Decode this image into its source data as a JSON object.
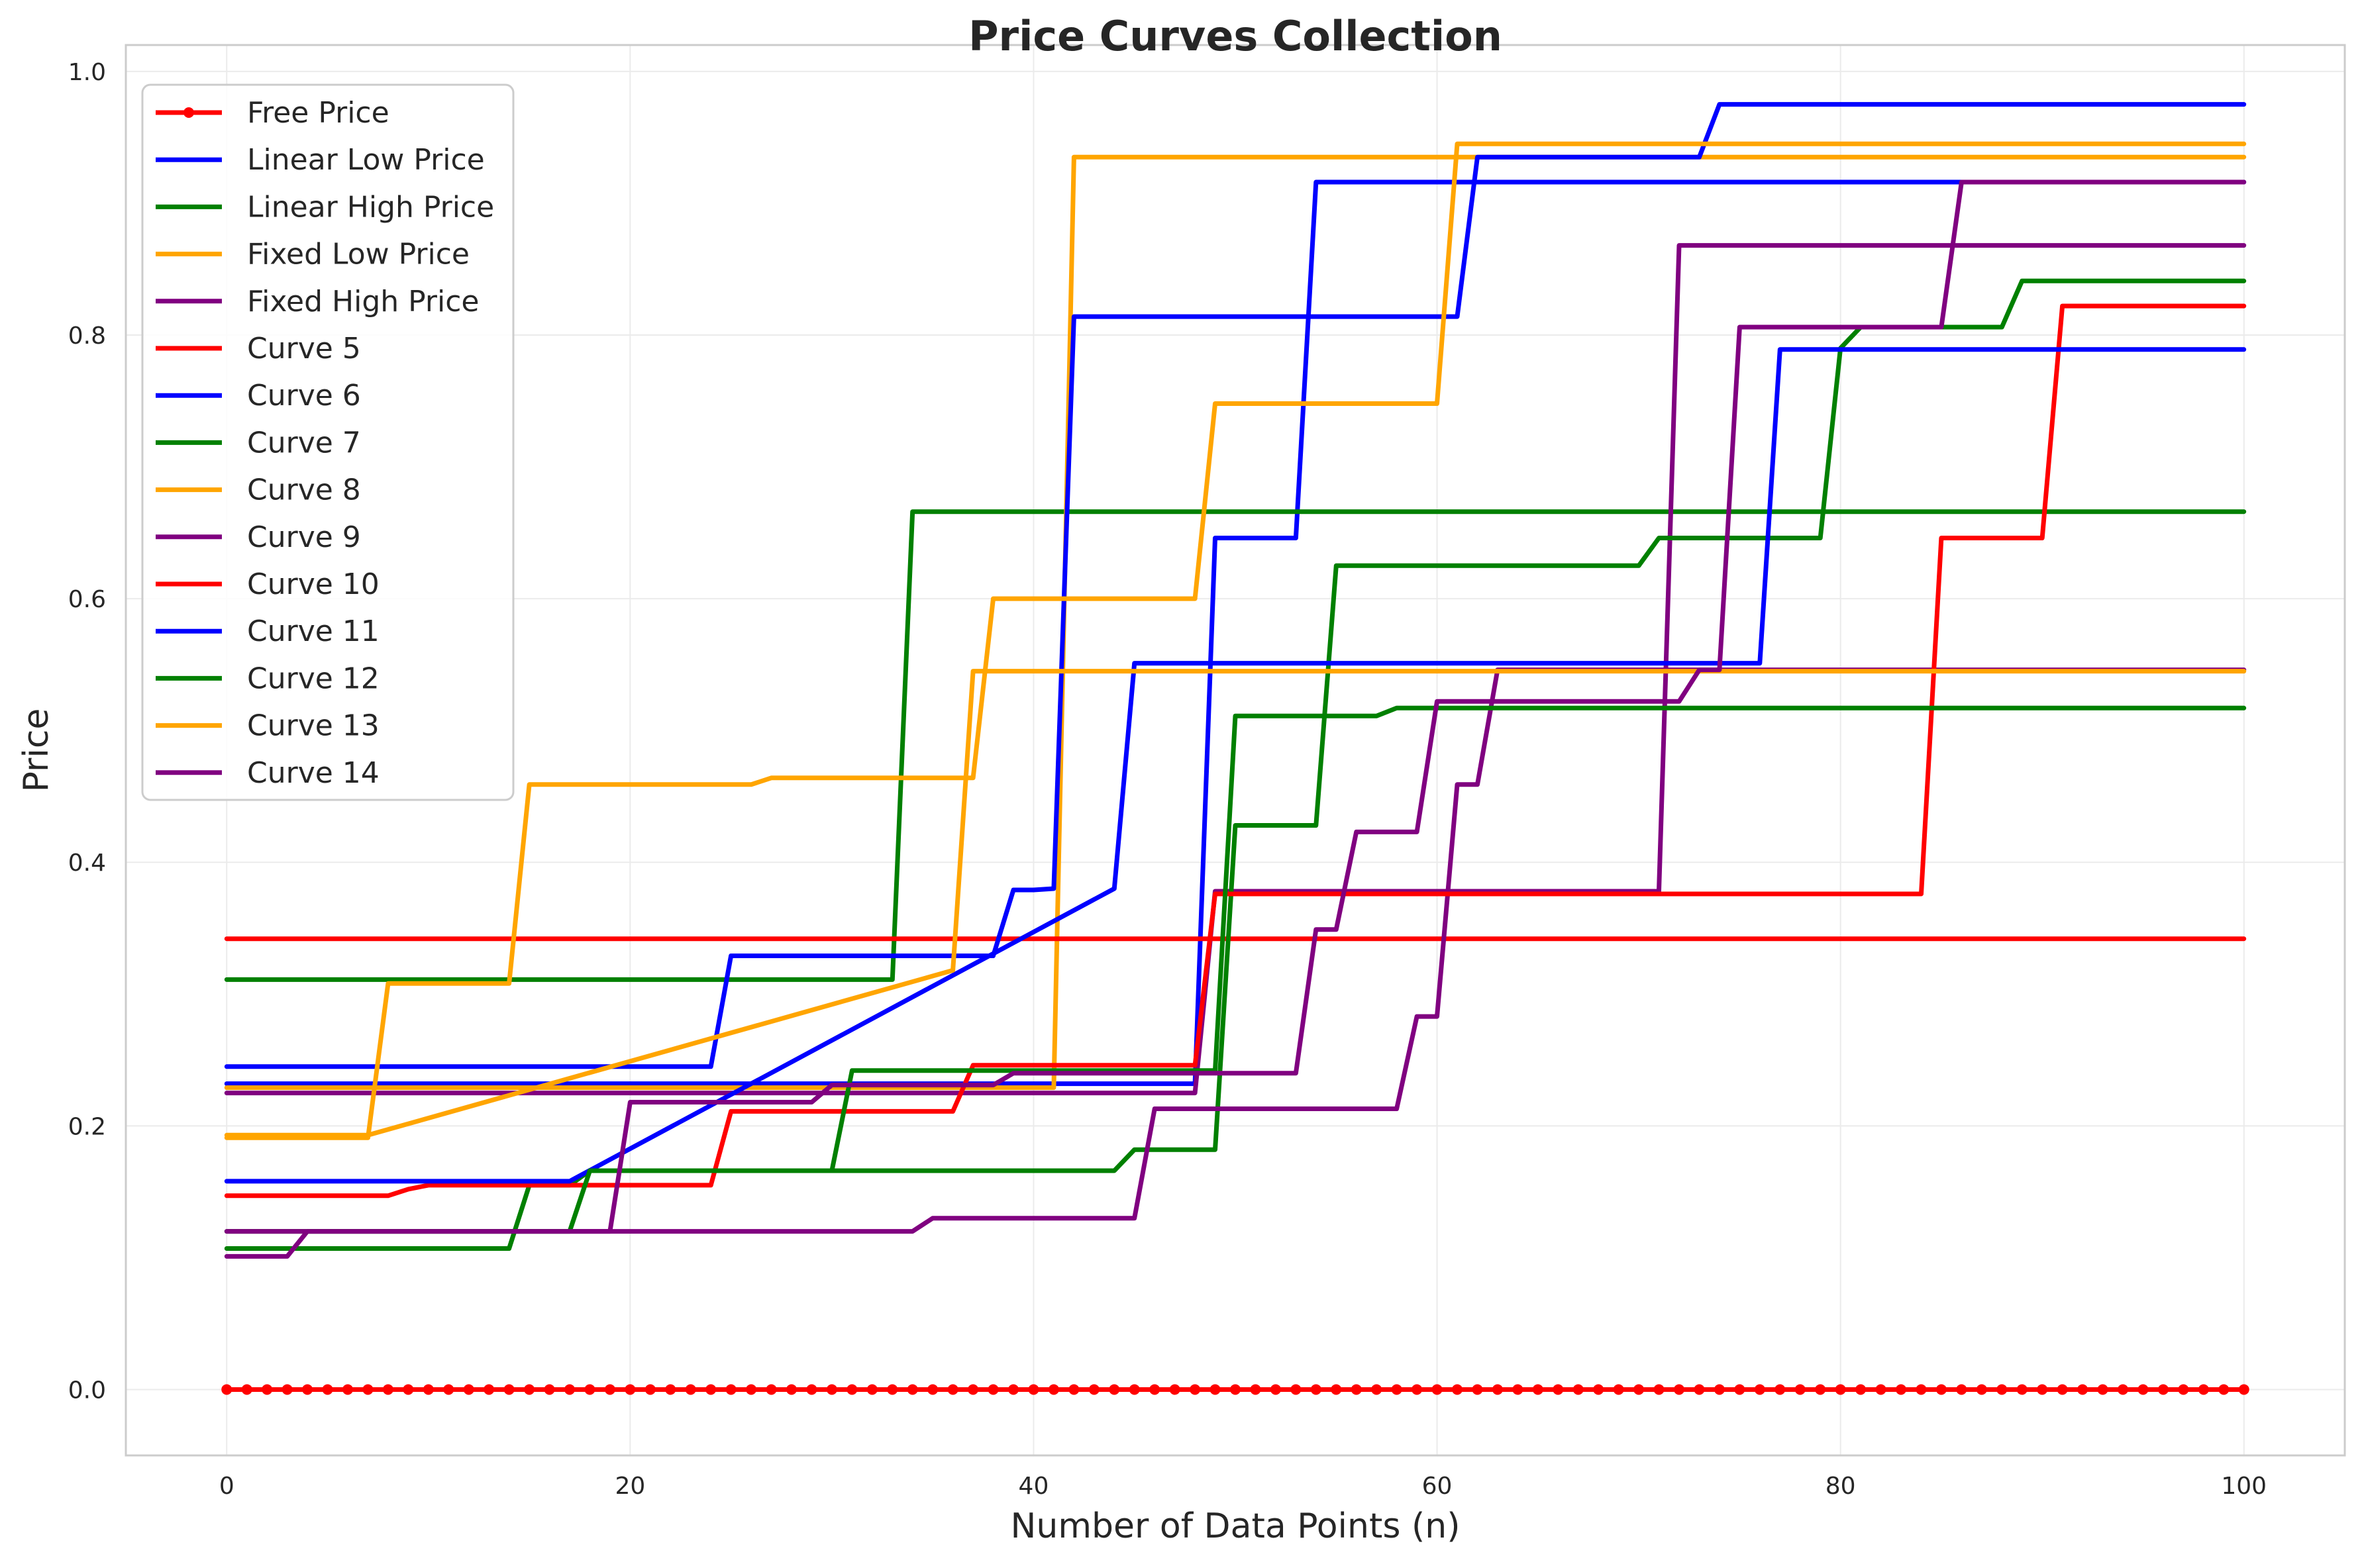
{
  "chart_data": {
    "type": "line",
    "title": "Price Curves Collection",
    "xlabel": "Number of Data Points (n)",
    "ylabel": "Price",
    "xlim": [
      -5,
      105
    ],
    "ylim": [
      -0.05,
      1.02
    ],
    "xticks": [
      0,
      20,
      40,
      60,
      80,
      100
    ],
    "yticks": [
      0.0,
      0.2,
      0.4,
      0.6,
      0.8,
      1.0
    ],
    "xtick_labels": [
      "0",
      "20",
      "40",
      "60",
      "80",
      "100"
    ],
    "ytick_labels": [
      "0.0",
      "0.2",
      "0.4",
      "0.6",
      "0.8",
      "1.0"
    ],
    "grid": true,
    "legend_position": "top-left",
    "series": [
      {
        "name": "Free Price",
        "color": "#ff0000",
        "markers": true,
        "x": [
          0,
          100
        ],
        "y": [
          0.0,
          0.0
        ]
      },
      {
        "name": "Linear Low Price",
        "color": "#0000ff",
        "x": [
          0,
          48,
          49,
          53,
          54,
          100
        ],
        "y": [
          0.232,
          0.232,
          0.646,
          0.646,
          0.916,
          0.916
        ]
      },
      {
        "name": "Linear High Price",
        "color": "#008000",
        "x": [
          0,
          33,
          34,
          100
        ],
        "y": [
          0.311,
          0.311,
          0.666,
          0.666
        ]
      },
      {
        "name": "Fixed Low Price",
        "color": "#ffa500",
        "x": [
          0,
          41,
          42,
          100
        ],
        "y": [
          0.229,
          0.229,
          0.935,
          0.935
        ]
      },
      {
        "name": "Fixed High Price",
        "color": "#800080",
        "x": [
          0,
          48,
          49,
          71,
          72,
          100
        ],
        "y": [
          0.225,
          0.225,
          0.378,
          0.378,
          0.868,
          0.868
        ]
      },
      {
        "name": "Curve 5",
        "color": "#ff0000",
        "x": [
          0,
          100
        ],
        "y": [
          0.342,
          0.342
        ]
      },
      {
        "name": "Curve 6",
        "color": "#0000ff",
        "x": [
          0,
          24,
          25,
          38,
          39,
          40,
          41,
          42,
          61,
          62,
          73,
          74,
          100
        ],
        "y": [
          0.245,
          0.245,
          0.329,
          0.329,
          0.379,
          0.379,
          0.38,
          0.814,
          0.814,
          0.935,
          0.935,
          0.975,
          0.975
        ]
      },
      {
        "name": "Curve 7",
        "color": "#008000",
        "x": [
          0,
          14,
          15,
          17,
          18,
          44,
          45,
          49,
          50,
          51,
          54,
          55,
          58,
          59,
          70,
          71,
          79,
          80,
          81,
          88,
          89,
          100
        ],
        "y": [
          0.107,
          0.107,
          0.155,
          0.155,
          0.166,
          0.166,
          0.182,
          0.182,
          0.428,
          0.428,
          0.428,
          0.625,
          0.625,
          0.625,
          0.625,
          0.646,
          0.646,
          0.79,
          0.806,
          0.806,
          0.841,
          0.841
        ]
      },
      {
        "name": "Curve 8",
        "color": "#ffa500",
        "x": [
          0,
          7,
          8,
          14,
          15,
          26,
          27,
          37,
          38,
          48,
          49,
          59,
          60,
          61,
          100
        ],
        "y": [
          0.191,
          0.191,
          0.308,
          0.308,
          0.459,
          0.459,
          0.464,
          0.464,
          0.6,
          0.6,
          0.748,
          0.748,
          0.748,
          0.945,
          0.945
        ]
      },
      {
        "name": "Curve 9",
        "color": "#800080",
        "x": [
          0,
          3,
          4,
          34,
          35,
          45,
          46,
          58,
          59,
          60,
          61,
          62,
          63,
          100
        ],
        "y": [
          0.101,
          0.101,
          0.12,
          0.12,
          0.13,
          0.13,
          0.213,
          0.213,
          0.283,
          0.283,
          0.459,
          0.459,
          0.546,
          0.546
        ]
      },
      {
        "name": "Curve 10",
        "color": "#ff0000",
        "x": [
          0,
          8,
          9,
          10,
          20,
          21,
          24,
          25,
          35,
          36,
          37,
          48,
          49,
          84,
          85,
          89,
          90,
          91,
          100
        ],
        "y": [
          0.147,
          0.147,
          0.152,
          0.155,
          0.155,
          0.155,
          0.155,
          0.211,
          0.211,
          0.211,
          0.246,
          0.246,
          0.376,
          0.376,
          0.646,
          0.646,
          0.646,
          0.822,
          0.822
        ]
      },
      {
        "name": "Curve 11",
        "color": "#0000ff",
        "x": [
          0,
          16,
          17,
          44,
          45,
          76,
          77,
          100
        ],
        "y": [
          0.158,
          0.158,
          0.158,
          0.38,
          0.551,
          0.551,
          0.789,
          0.789
        ]
      },
      {
        "name": "Curve 12",
        "color": "#008000",
        "x": [
          0,
          17,
          18,
          30,
          31,
          49,
          50,
          57,
          58,
          100
        ],
        "y": [
          0.12,
          0.12,
          0.166,
          0.166,
          0.242,
          0.242,
          0.511,
          0.511,
          0.517,
          0.517
        ]
      },
      {
        "name": "Curve 13",
        "color": "#ffa500",
        "x": [
          0,
          6,
          7,
          36,
          37,
          100
        ],
        "y": [
          0.193,
          0.193,
          0.193,
          0.318,
          0.545,
          0.545
        ]
      },
      {
        "name": "Curve 14",
        "color": "#800080",
        "x": [
          0,
          19,
          20,
          29,
          30,
          38,
          39,
          53,
          54,
          55,
          56,
          57,
          58,
          59,
          60,
          71,
          72,
          73,
          74,
          75,
          85,
          86,
          100
        ],
        "y": [
          0.12,
          0.12,
          0.218,
          0.218,
          0.231,
          0.231,
          0.24,
          0.24,
          0.349,
          0.349,
          0.423,
          0.423,
          0.423,
          0.423,
          0.522,
          0.522,
          0.522,
          0.546,
          0.546,
          0.806,
          0.806,
          0.916,
          0.916
        ]
      }
    ]
  }
}
